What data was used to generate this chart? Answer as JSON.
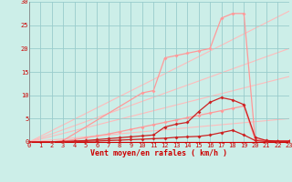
{
  "bg_color": "#cceee8",
  "grid_color": "#99cccc",
  "xlabel": "Vent moyen/en rafales ( km/h )",
  "xlim": [
    0,
    23
  ],
  "ylim": [
    0,
    30
  ],
  "xticks": [
    0,
    1,
    2,
    3,
    4,
    5,
    6,
    7,
    8,
    9,
    10,
    11,
    12,
    13,
    14,
    15,
    16,
    17,
    18,
    19,
    20,
    21,
    22,
    23
  ],
  "yticks": [
    0,
    5,
    10,
    15,
    20,
    25,
    30
  ],
  "lines": [
    {
      "name": "diag_upper",
      "x": [
        0,
        23
      ],
      "y": [
        0,
        28
      ],
      "color": "#ffbbbb",
      "linewidth": 0.8,
      "marker": null,
      "zorder": 1
    },
    {
      "name": "diag_mid1",
      "x": [
        0,
        23
      ],
      "y": [
        0,
        20
      ],
      "color": "#ffbbbb",
      "linewidth": 0.8,
      "marker": null,
      "zorder": 1
    },
    {
      "name": "diag_mid2",
      "x": [
        0,
        23
      ],
      "y": [
        0,
        14
      ],
      "color": "#ffbbbb",
      "linewidth": 0.8,
      "marker": null,
      "zorder": 1
    },
    {
      "name": "diag_lower",
      "x": [
        0,
        23
      ],
      "y": [
        0,
        5
      ],
      "color": "#ffbbbb",
      "linewidth": 0.8,
      "marker": null,
      "zorder": 1
    },
    {
      "name": "curve_light_upper",
      "x": [
        0,
        2,
        3,
        10,
        11,
        12,
        13,
        14,
        15,
        16,
        17,
        18,
        19,
        20,
        21,
        22,
        23
      ],
      "y": [
        0,
        0,
        0.3,
        10.5,
        11.0,
        18.0,
        18.5,
        19.0,
        19.5,
        20.0,
        26.5,
        27.5,
        27.5,
        0.5,
        0.3,
        0.2,
        0.2
      ],
      "color": "#ff9999",
      "linewidth": 0.9,
      "marker": "D",
      "markersize": 2.0,
      "zorder": 3
    },
    {
      "name": "curve_light_lower",
      "x": [
        0,
        2,
        3,
        4,
        5,
        6,
        7,
        8,
        9,
        10,
        11,
        12,
        13,
        14,
        15,
        16,
        17,
        18,
        19,
        20,
        21,
        22,
        23
      ],
      "y": [
        0,
        0,
        0.2,
        0.5,
        0.9,
        1.3,
        1.7,
        2.2,
        2.7,
        3.2,
        3.7,
        4.2,
        4.7,
        5.2,
        5.7,
        6.2,
        6.7,
        7.2,
        7.7,
        0.5,
        0.2,
        0.2,
        0.2
      ],
      "color": "#ff9999",
      "linewidth": 0.9,
      "marker": "D",
      "markersize": 2.0,
      "zorder": 3
    },
    {
      "name": "curve_red_upper",
      "x": [
        0,
        2,
        3,
        4,
        5,
        6,
        7,
        8,
        9,
        10,
        11,
        12,
        13,
        14,
        15,
        16,
        17,
        18,
        19,
        20,
        21,
        22,
        23
      ],
      "y": [
        0,
        0,
        0.1,
        0.2,
        0.3,
        0.5,
        0.7,
        0.9,
        1.1,
        1.3,
        1.5,
        3.2,
        3.8,
        4.2,
        6.5,
        8.5,
        9.5,
        9.0,
        8.0,
        1.0,
        0.3,
        0.2,
        0.2
      ],
      "color": "#cc2222",
      "linewidth": 0.9,
      "marker": "D",
      "markersize": 2.0,
      "zorder": 4
    },
    {
      "name": "curve_red_lower",
      "x": [
        0,
        2,
        3,
        4,
        5,
        6,
        7,
        8,
        9,
        10,
        11,
        12,
        13,
        14,
        15,
        16,
        17,
        18,
        19,
        20,
        21,
        22,
        23
      ],
      "y": [
        0,
        0,
        0.05,
        0.1,
        0.15,
        0.2,
        0.3,
        0.4,
        0.5,
        0.6,
        0.7,
        0.8,
        1.0,
        1.1,
        1.2,
        1.5,
        2.0,
        2.5,
        1.5,
        0.3,
        0.1,
        0.1,
        0.1
      ],
      "color": "#cc2222",
      "linewidth": 0.9,
      "marker": "D",
      "markersize": 2.0,
      "zorder": 4
    }
  ]
}
